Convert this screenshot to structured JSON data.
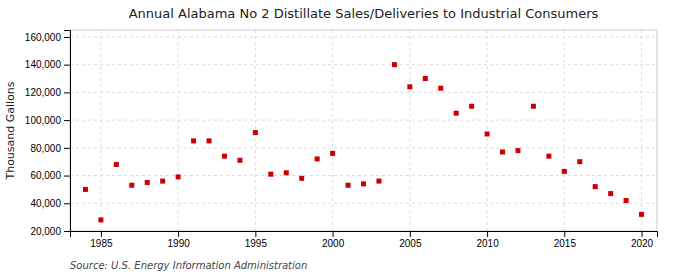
{
  "chart_data": {
    "type": "scatter",
    "title": "Annual Alabama No 2 Distillate Sales/Deliveries to Industrial Consumers",
    "ylabel": "Thousand Gallons",
    "source": "Source: U.S. Energy Information Administration",
    "x": [
      1984,
      1985,
      1986,
      1987,
      1988,
      1989,
      1990,
      1991,
      1992,
      1993,
      1994,
      1995,
      1996,
      1997,
      1998,
      1999,
      2000,
      2001,
      2002,
      2003,
      2004,
      2005,
      2006,
      2007,
      2008,
      2009,
      2010,
      2011,
      2012,
      2013,
      2014,
      2015,
      2016,
      2017,
      2018,
      2019,
      2020
    ],
    "values": [
      50000,
      28000,
      68000,
      53000,
      55000,
      56000,
      59000,
      85000,
      85000,
      74000,
      71000,
      91000,
      61000,
      62000,
      58000,
      72000,
      76000,
      53000,
      54000,
      56000,
      140000,
      124000,
      130000,
      123000,
      105000,
      110000,
      90000,
      77000,
      78000,
      110000,
      74000,
      63000,
      70000,
      52000,
      47000,
      42000,
      32000
    ],
    "color": "#cc0000",
    "marker": "square",
    "grid": true,
    "xlim": [
      1983,
      2021
    ],
    "xticks": [
      1985,
      1990,
      1995,
      2000,
      2005,
      2010,
      2015,
      2020
    ],
    "ylim": [
      20000,
      165000
    ],
    "yticks": [
      {
        "value": 20000,
        "label": "20,000"
      },
      {
        "value": 40000,
        "label": "40,000"
      },
      {
        "value": 60000,
        "label": "60,000"
      },
      {
        "value": 80000,
        "label": "80,000"
      },
      {
        "value": 100000,
        "label": "100,000"
      },
      {
        "value": 120000,
        "label": "120,000"
      },
      {
        "value": 140000,
        "label": "140,000"
      },
      {
        "value": 160000,
        "label": "160,000"
      }
    ]
  }
}
